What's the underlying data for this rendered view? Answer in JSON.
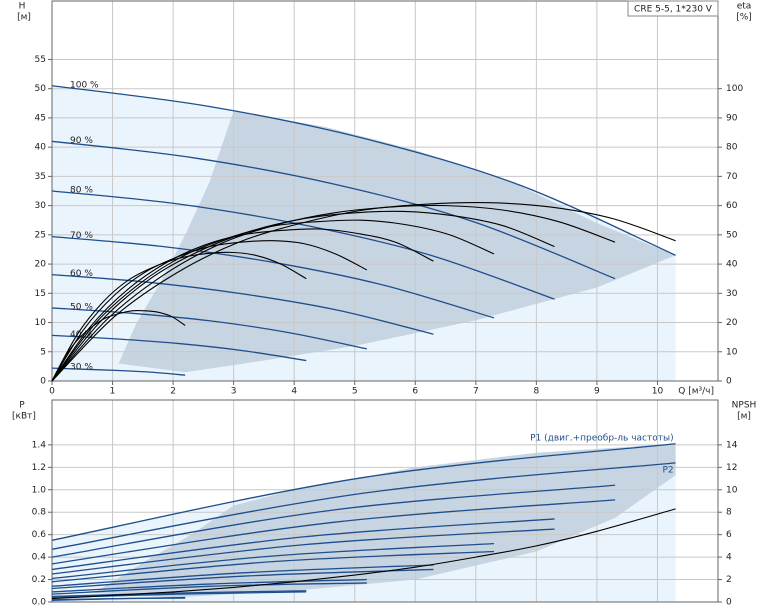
{
  "chart_data": [
    {
      "type": "line",
      "title": "CRE 5-5, 1*230 V",
      "ylabel": "H",
      "yunit": "[м]",
      "y2label": "eta",
      "y2unit": "[%]",
      "xlabel": "Q [м³/ч]",
      "xlim": [
        0,
        11
      ],
      "xticks": [
        0,
        1,
        2,
        3,
        4,
        5,
        6,
        7,
        8,
        9,
        10
      ],
      "ylim": [
        0,
        65
      ],
      "yticks": [
        0,
        5,
        10,
        15,
        20,
        25,
        30,
        35,
        40,
        45,
        50,
        55
      ],
      "y2lim": [
        0,
        130
      ],
      "y2ticks": [
        0,
        10,
        20,
        30,
        40,
        50,
        60,
        70,
        80,
        90,
        100
      ],
      "grid": true,
      "area_color": "#eaf4fd",
      "series_label_position": "start",
      "series": [
        {
          "name": "100 %",
          "color": "#1f4e8c",
          "x": [
            0,
            2.575,
            5.15,
            7.725,
            10.3
          ],
          "values": [
            50.5,
            47,
            41.5,
            33.5,
            21.5
          ]
        },
        {
          "fill": "#c7d5e2",
          "x": [
            3,
            2.6,
            2.2,
            1.8,
            1.4,
            1.1,
            2.2,
            3.5,
            5,
            7,
            9,
            10.3,
            9,
            7.7,
            6,
            4.5,
            3
          ],
          "values": [
            46.2,
            34,
            25,
            17,
            10,
            3,
            1.5,
            3.5,
            6,
            10.4,
            16,
            21.5,
            27,
            33.5,
            39.5,
            43.5,
            46.2
          ]
        },
        {
          "name": "90 %",
          "color": "#1f4e8c",
          "x": [
            0,
            2.325,
            4.65,
            6.975,
            9.3
          ],
          "values": [
            41,
            38.2,
            33.7,
            27.2,
            17.5
          ]
        },
        {
          "name": "80 %",
          "color": "#1f4e8c",
          "x": [
            0,
            2.075,
            4.15,
            6.225,
            8.3
          ],
          "values": [
            32.5,
            30.3,
            26.7,
            21.6,
            14
          ]
        },
        {
          "name": "70 %",
          "color": "#1f4e8c",
          "x": [
            0,
            1.825,
            3.65,
            5.475,
            7.3
          ],
          "values": [
            24.7,
            23,
            20.3,
            16.4,
            10.8
          ]
        },
        {
          "name": "60 %",
          "color": "#1f4e8c",
          "x": [
            0,
            1.575,
            3.15,
            4.725,
            6.3
          ],
          "values": [
            18.2,
            16.9,
            14.9,
            12.1,
            8
          ]
        },
        {
          "name": "50 %",
          "color": "#1f4e8c",
          "x": [
            0,
            1.3,
            2.6,
            3.9,
            5.2
          ],
          "values": [
            12.5,
            11.6,
            10.3,
            8.3,
            5.5
          ]
        },
        {
          "name": "40 %",
          "color": "#1f4e8c",
          "x": [
            0,
            1.05,
            2.1,
            3.15,
            4.2
          ],
          "values": [
            7.8,
            7.2,
            6.4,
            5.2,
            3.5
          ]
        },
        {
          "name": "30 %",
          "color": "#1f4e8c",
          "x": [
            0,
            0.55,
            1.1,
            1.65,
            2.2
          ],
          "values": [
            2.2,
            2,
            1.8,
            1.5,
            1
          ]
        },
        {
          "color": "#000000",
          "axis": "y2",
          "x": [
            0,
            1.03,
            2.06,
            3.09,
            4.12,
            5.15,
            6.18,
            7.21,
            8.24,
            9.27,
            10.3
          ],
          "values": [
            0,
            22,
            37,
            47.5,
            54,
            58.5,
            60.5,
            61,
            59.5,
            55.5,
            48
          ]
        },
        {
          "color": "#000000",
          "axis": "y2",
          "x": [
            0,
            0.93,
            1.86,
            2.79,
            3.72,
            4.65,
            5.58,
            6.51,
            7.44,
            8.37,
            9.3
          ],
          "values": [
            0,
            21.5,
            36.5,
            47,
            53.5,
            57.5,
            59.5,
            60,
            58.5,
            54.5,
            47.5
          ]
        },
        {
          "color": "#000000",
          "axis": "y2",
          "x": [
            0,
            0.83,
            1.66,
            2.49,
            3.32,
            4.15,
            4.98,
            5.81,
            6.64,
            7.47,
            8.3
          ],
          "values": [
            0,
            21,
            35.5,
            45,
            51.5,
            55.5,
            57.5,
            58,
            56.5,
            53,
            46
          ]
        },
        {
          "color": "#000000",
          "axis": "y2",
          "x": [
            0,
            0.73,
            1.46,
            2.19,
            2.92,
            3.65,
            4.38,
            5.11,
            5.84,
            6.57,
            7.3
          ],
          "values": [
            0,
            20,
            33.5,
            43,
            49,
            53,
            54.5,
            55,
            53.5,
            50,
            43.5
          ]
        },
        {
          "color": "#000000",
          "axis": "y2",
          "x": [
            0,
            0.63,
            1.26,
            1.89,
            2.52,
            3.15,
            3.78,
            4.41,
            5.04,
            5.67,
            6.3
          ],
          "values": [
            0,
            18.5,
            31.5,
            40.5,
            46.5,
            50,
            51.5,
            52,
            50.5,
            47.5,
            41
          ]
        },
        {
          "color": "#000000",
          "axis": "y2",
          "x": [
            0,
            0.52,
            1.04,
            1.56,
            2.08,
            2.6,
            3.12,
            3.64,
            4.16,
            4.68,
            5.2
          ],
          "values": [
            0,
            17.5,
            29.5,
            37.5,
            42.5,
            46,
            47.5,
            48,
            47,
            43.5,
            38
          ]
        },
        {
          "color": "#000000",
          "axis": "y2",
          "x": [
            0,
            0.42,
            0.84,
            1.26,
            1.68,
            2.1,
            2.52,
            2.94,
            3.36,
            3.78,
            4.2
          ],
          "values": [
            0,
            16,
            27,
            34.5,
            39,
            42,
            43.5,
            44,
            43,
            40,
            35
          ]
        },
        {
          "color": "#000000",
          "axis": "y2",
          "x": [
            0,
            0.22,
            0.44,
            0.66,
            0.88,
            1.1,
            1.32,
            1.54,
            1.76,
            1.98,
            2.2
          ],
          "values": [
            0,
            8.5,
            14.5,
            18.5,
            21.5,
            23,
            24,
            24,
            23.5,
            22,
            19
          ]
        }
      ]
    },
    {
      "type": "line",
      "ylabel": "P",
      "yunit": "[кВт]",
      "y2label": "NPSH",
      "y2unit": "[м]",
      "xlim": [
        0,
        11
      ],
      "xticks": [
        0,
        1,
        2,
        3,
        4,
        5,
        6,
        7,
        8,
        9,
        10
      ],
      "ylim": [
        0,
        1.8
      ],
      "yticks": [
        {
          "value": 0,
          "label": "0.0"
        },
        0.2,
        0.4,
        0.6,
        0.8,
        {
          "value": 1,
          "label": "1.0"
        },
        1.2,
        1.4
      ],
      "y2lim": [
        0,
        18
      ],
      "y2ticks": [
        0,
        2,
        4,
        6,
        8,
        10,
        12,
        14
      ],
      "grid": true,
      "area_color": "#eaf4fd",
      "series_label_position": "end",
      "series": [
        {
          "name": "P1 (двиг.+преобр-ль частоты)",
          "color": "#1f4e8c",
          "x": [
            0,
            5.15,
            10.3
          ],
          "values": [
            0.55,
            1.11,
            1.41
          ]
        },
        {
          "fill": "#c7d5e2",
          "x": [
            3,
            2.3,
            1.5,
            0.7,
            2,
            4,
            6,
            8,
            9.3,
            10.3,
            10.3,
            8,
            6,
            4,
            3
          ],
          "values": [
            0.86,
            0.6,
            0.35,
            0.08,
            0.04,
            0.1,
            0.2,
            0.45,
            0.75,
            1.13,
            1.41,
            1.33,
            1.2,
            1.0,
            0.86
          ]
        },
        {
          "name": "P2",
          "color": "#1f4e8c",
          "x": [
            0,
            5.15,
            10.3
          ],
          "values": [
            0.47,
            0.97,
            1.24
          ]
        },
        {
          "color": "#1f4e8c",
          "x": [
            0,
            4.65,
            9.3
          ],
          "values": [
            0.4,
            0.82,
            1.04
          ]
        },
        {
          "color": "#1f4e8c",
          "x": [
            0,
            4.65,
            9.3
          ],
          "values": [
            0.34,
            0.71,
            0.91
          ]
        },
        {
          "color": "#1f4e8c",
          "x": [
            0,
            4.15,
            8.3
          ],
          "values": [
            0.29,
            0.58,
            0.74
          ]
        },
        {
          "color": "#1f4e8c",
          "x": [
            0,
            4.15,
            8.3
          ],
          "values": [
            0.25,
            0.51,
            0.65
          ]
        },
        {
          "color": "#1f4e8c",
          "x": [
            0,
            3.65,
            7.3
          ],
          "values": [
            0.21,
            0.41,
            0.52
          ]
        },
        {
          "color": "#1f4e8c",
          "x": [
            0,
            3.65,
            7.3
          ],
          "values": [
            0.18,
            0.36,
            0.45
          ]
        },
        {
          "color": "#1f4e8c",
          "x": [
            0,
            3.15,
            6.3
          ],
          "values": [
            0.14,
            0.26,
            0.33
          ]
        },
        {
          "color": "#1f4e8c",
          "x": [
            0,
            3.15,
            6.3
          ],
          "values": [
            0.12,
            0.23,
            0.29
          ]
        },
        {
          "color": "#1f4e8c",
          "x": [
            0,
            2.6,
            5.2
          ],
          "values": [
            0.09,
            0.16,
            0.2
          ]
        },
        {
          "color": "#1f4e8c",
          "x": [
            0,
            2.6,
            5.2
          ],
          "values": [
            0.07,
            0.14,
            0.17
          ]
        },
        {
          "color": "#1f4e8c",
          "x": [
            0,
            2.1,
            4.2
          ],
          "values": [
            0.05,
            0.08,
            0.1
          ]
        },
        {
          "color": "#1f4e8c",
          "x": [
            0,
            2.1,
            4.2
          ],
          "values": [
            0.04,
            0.07,
            0.09
          ]
        },
        {
          "color": "#1f4e8c",
          "x": [
            0,
            1.1,
            2.2
          ],
          "values": [
            0.02,
            0.03,
            0.04
          ]
        },
        {
          "color": "#1f4e8c",
          "x": [
            0,
            1.1,
            2.2
          ],
          "values": [
            0.015,
            0.03,
            0.035
          ]
        },
        {
          "color": "#000000",
          "axis": "y2",
          "x": [
            0,
            1,
            2,
            3,
            4,
            5,
            6,
            7,
            8,
            9,
            10.3
          ],
          "values": [
            0.3,
            0.6,
            0.9,
            1.3,
            1.8,
            2.4,
            3.1,
            4.0,
            5.0,
            6.3,
            8.3
          ]
        }
      ]
    }
  ]
}
